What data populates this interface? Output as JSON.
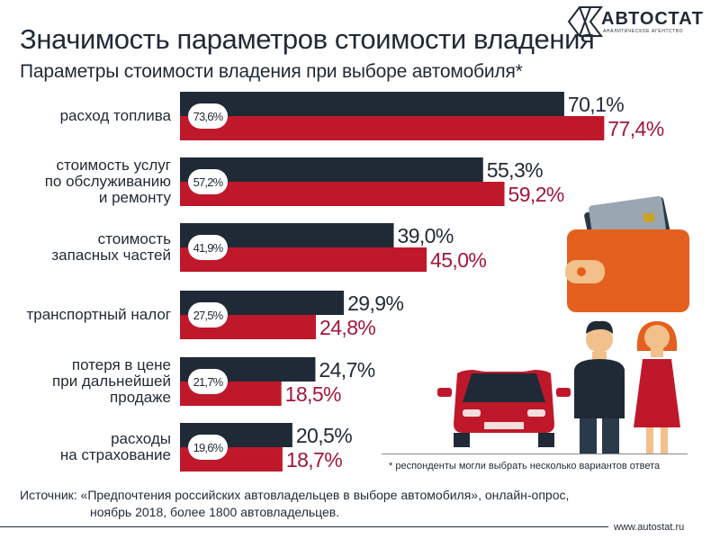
{
  "header": {
    "title": "Значимость параметров стоимости владения",
    "subtitle": "Параметры стоимости владения при выборе автомобиля*"
  },
  "logo": {
    "name": "АВТОСТАТ",
    "tagline": "АНАЛИТИЧЕСКОЕ АГЕНТСТВО"
  },
  "colors": {
    "dark": "#1f2a36",
    "red": "#c0182b",
    "red_text": "#a3163a",
    "dark_text": "#1f2a36"
  },
  "chart_data": {
    "type": "bar",
    "orientation": "horizontal",
    "title": "Параметры стоимости владения при выборе автомобиля*",
    "categories": [
      "расход топлива",
      "стоимость услуг\nпо обслуживанию\nи ремонту",
      "стоимость\nзапасных частей",
      "транспортный налог",
      "потеря в цене\nпри дальнейшей\nпродаже",
      "расходы\nна страхование"
    ],
    "series": [
      {
        "values": [
          70.1,
          55.3,
          39.0,
          29.9,
          24.7,
          20.5
        ],
        "labels": [
          "70,1%",
          "55,3%",
          "39,0%",
          "29,9%",
          "24,7%",
          "20,5%"
        ]
      },
      {
        "values": [
          77.4,
          59.2,
          45.0,
          24.8,
          18.5,
          18.7
        ],
        "labels": [
          "77,4%",
          "59,2%",
          "45,0%",
          "24,8%",
          "18,5%",
          "18,7%"
        ]
      }
    ],
    "totals": {
      "values": [
        73.6,
        57.2,
        41.9,
        27.5,
        21.7,
        19.6
      ],
      "labels": [
        "73,6%",
        "57,2%",
        "41,9%",
        "27,5%",
        "21,7%",
        "19,6%"
      ]
    },
    "xlim": [
      0,
      100
    ],
    "legend": "none",
    "grid": false
  },
  "footnote": "* респонденты могли выбрать несколько вариантов ответа",
  "source": {
    "line1": "Источник: «Предпочтения российских автовладельцев в выборе автомобиля», онлайн-опрос,",
    "line2": "ноябрь 2018, более 1800 автовладельцев."
  },
  "url": "www.autostat.ru",
  "illustration": {
    "icons": [
      "wallet-icon",
      "car-icon",
      "man-icon",
      "woman-icon"
    ]
  }
}
